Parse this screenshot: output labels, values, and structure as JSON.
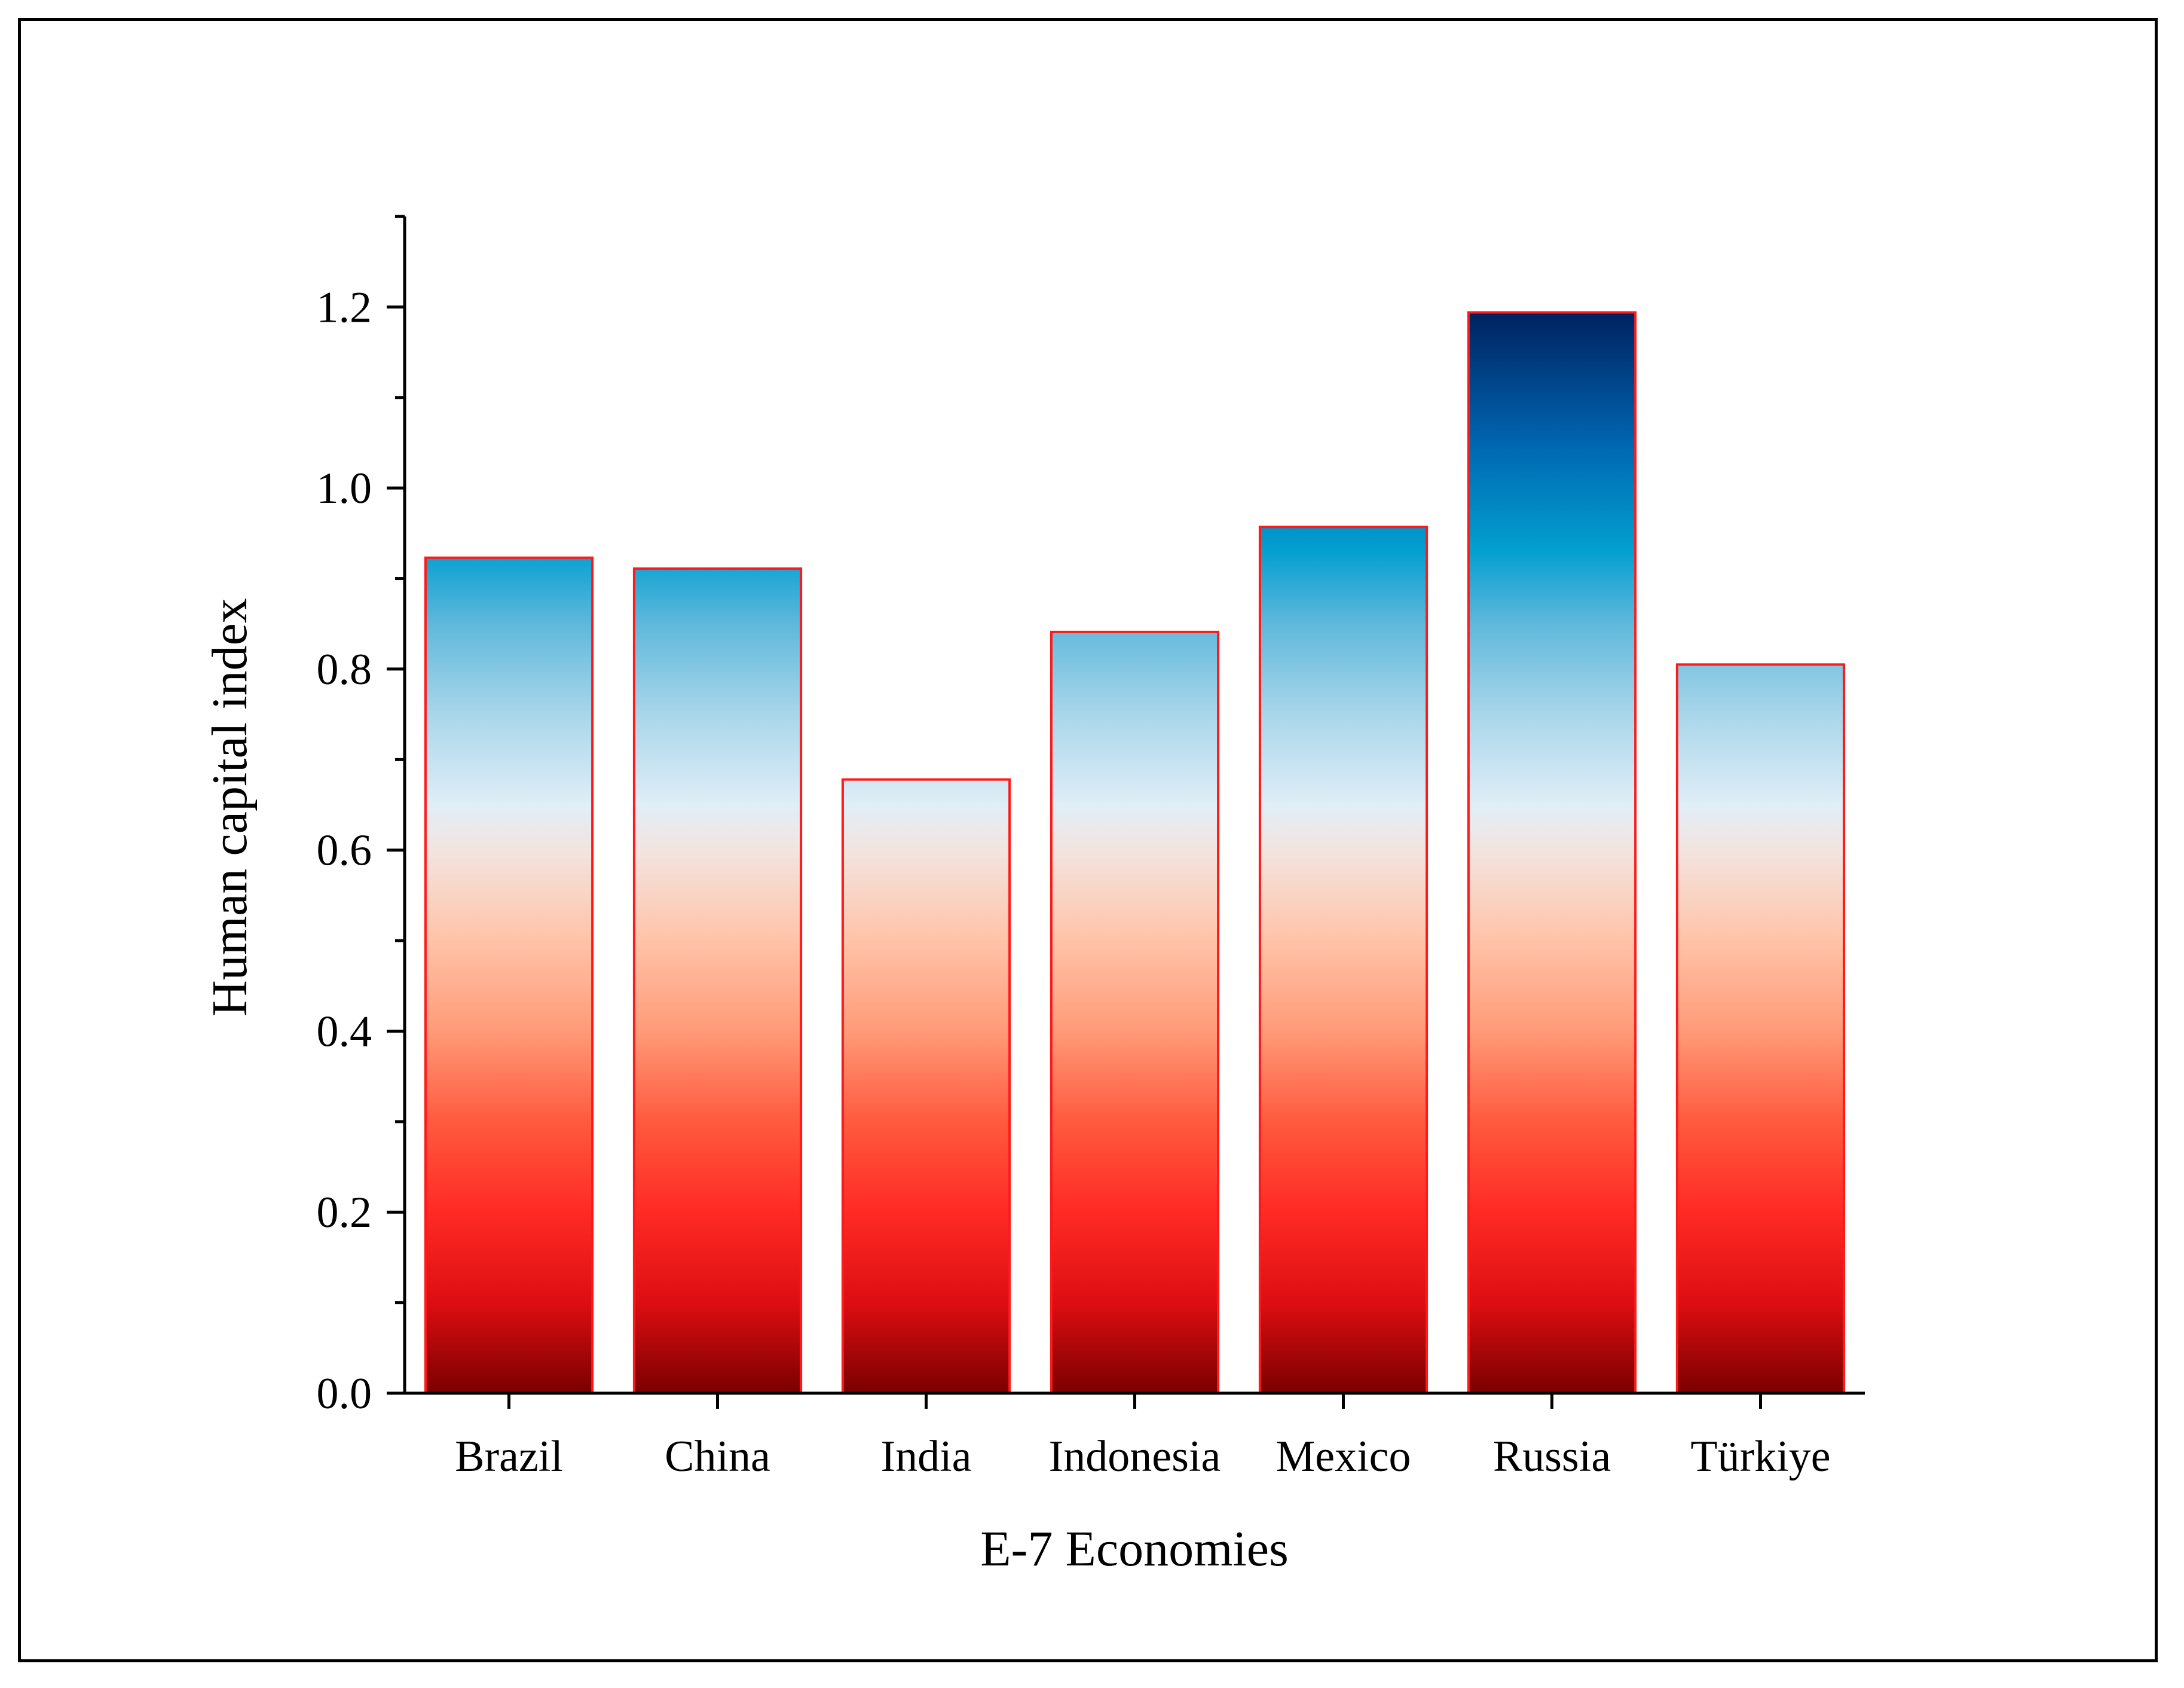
{
  "chart_data": {
    "type": "bar",
    "title": "",
    "xlabel": "E-7 Economies",
    "ylabel": "Human capital index",
    "categories": [
      "Brazil",
      "China",
      "India",
      "Indonesia",
      "Mexico",
      "Russia",
      "Türkiye"
    ],
    "values": [
      0.923,
      0.911,
      0.678,
      0.841,
      0.957,
      1.194,
      0.805
    ],
    "ylim": [
      0,
      1.3
    ],
    "yticks": [
      0.0,
      0.2,
      0.4,
      0.6,
      0.8,
      1.0,
      1.2
    ],
    "ytick_labels": [
      "0.0",
      "0.2",
      "0.4",
      "0.6",
      "0.8",
      "1.0",
      "1.2"
    ],
    "grid": false,
    "legend": "none",
    "colors": {
      "bar_outline": "#ff1a1a",
      "gradient": [
        {
          "value": 0.0,
          "color": "#7a0000"
        },
        {
          "value": 0.1,
          "color": "#dd0e12"
        },
        {
          "value": 0.2,
          "color": "#ff2a24"
        },
        {
          "value": 0.3,
          "color": "#ff5a3e"
        },
        {
          "value": 0.4,
          "color": "#ff9a78"
        },
        {
          "value": 0.5,
          "color": "#ffc3a8"
        },
        {
          "value": 0.6,
          "color": "#f3e4e0"
        },
        {
          "value": 0.65,
          "color": "#e0eef7"
        },
        {
          "value": 0.75,
          "color": "#a9d6ea"
        },
        {
          "value": 0.85,
          "color": "#5fb8dc"
        },
        {
          "value": 0.93,
          "color": "#03a0d0"
        },
        {
          "value": 1.05,
          "color": "#0065b0"
        },
        {
          "value": 1.2,
          "color": "#001f5c"
        }
      ]
    }
  }
}
